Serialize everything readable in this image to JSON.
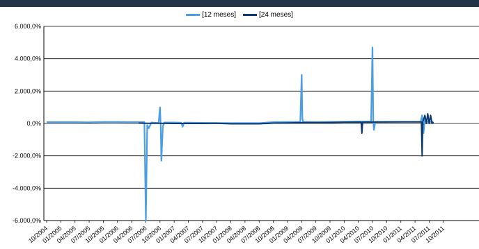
{
  "chart_data": {
    "type": "line",
    "title": "",
    "xlabel": "",
    "ylabel": "",
    "ylim": [
      -6000,
      6000
    ],
    "y_ticks": [
      6000,
      4000,
      2000,
      0,
      -2000,
      -4000,
      -6000
    ],
    "y_tick_labels": [
      "6.000,0%",
      "4.000,0%",
      "2.000,0%",
      "0,0%",
      "-2.000,0%",
      "-4.000,0%",
      "-6.000,0%"
    ],
    "x_ticks": [
      "10/2004",
      "01/2005",
      "04/2005",
      "07/2005",
      "10/2005",
      "01/2006",
      "04/2006",
      "07/2006",
      "10/2006",
      "01/2007",
      "04/2007",
      "07/2007",
      "10/2007",
      "01/2008",
      "04/2008",
      "07/2008",
      "10/2008",
      "01/2009",
      "04/2009",
      "07/2009",
      "10/2009",
      "01/2010",
      "04/2010",
      "07/2010",
      "10/2010",
      "01/2011",
      "04/2011",
      "07/2011",
      "10/2011"
    ],
    "grid": true,
    "legend": "top-center",
    "series": [
      {
        "name": "[12 meses]",
        "color": "#4a9ee8",
        "points": [
          [
            0,
            80
          ],
          [
            1,
            80
          ],
          [
            2,
            80
          ],
          [
            3,
            70
          ],
          [
            4,
            90
          ],
          [
            5,
            90
          ],
          [
            6,
            80
          ],
          [
            6.9,
            80
          ],
          [
            7.0,
            -6000
          ],
          [
            7.1,
            -100
          ],
          [
            7.2,
            -300
          ],
          [
            7.4,
            60
          ],
          [
            7.9,
            30
          ],
          [
            8.0,
            1000
          ],
          [
            8.05,
            -100
          ],
          [
            8.1,
            -2300
          ],
          [
            8.2,
            -200
          ],
          [
            8.3,
            60
          ],
          [
            9,
            60
          ],
          [
            9.5,
            50
          ],
          [
            9.6,
            -200
          ],
          [
            9.7,
            50
          ],
          [
            10,
            50
          ],
          [
            11,
            40
          ],
          [
            12,
            30
          ],
          [
            13,
            20
          ],
          [
            14,
            20
          ],
          [
            15,
            20
          ],
          [
            16,
            80
          ],
          [
            17,
            90
          ],
          [
            17.9,
            100
          ],
          [
            18.0,
            3000
          ],
          [
            18.05,
            300
          ],
          [
            18.1,
            100
          ],
          [
            19,
            80
          ],
          [
            20,
            90
          ],
          [
            21,
            100
          ],
          [
            22,
            120
          ],
          [
            22.9,
            120
          ],
          [
            23.0,
            4700
          ],
          [
            23.05,
            200
          ],
          [
            23.1,
            -400
          ],
          [
            23.2,
            100
          ],
          [
            24,
            100
          ],
          [
            25,
            100
          ],
          [
            26,
            100
          ],
          [
            26.4,
            100
          ],
          [
            26.5,
            500
          ],
          [
            26.6,
            -600
          ],
          [
            26.7,
            300
          ],
          [
            26.8,
            100
          ],
          [
            27,
            100
          ],
          [
            27.3,
            100
          ]
        ]
      },
      {
        "name": "[24 meses]",
        "color": "#0d3a6e",
        "points": [
          [
            6.5,
            20
          ],
          [
            7,
            10
          ],
          [
            8,
            10
          ],
          [
            9,
            0
          ],
          [
            10,
            0
          ],
          [
            11,
            0
          ],
          [
            12,
            10
          ],
          [
            13,
            -20
          ],
          [
            14,
            -20
          ],
          [
            15,
            -20
          ],
          [
            16,
            20
          ],
          [
            17,
            30
          ],
          [
            18,
            50
          ],
          [
            19,
            50
          ],
          [
            20,
            60
          ],
          [
            21,
            80
          ],
          [
            22,
            80
          ],
          [
            22.2,
            80
          ],
          [
            22.25,
            -600
          ],
          [
            22.3,
            80
          ],
          [
            24,
            90
          ],
          [
            25,
            100
          ],
          [
            26,
            100
          ],
          [
            26.45,
            100
          ],
          [
            26.5,
            -2000
          ],
          [
            26.55,
            100
          ],
          [
            26.7,
            500
          ],
          [
            26.8,
            0
          ],
          [
            26.9,
            600
          ],
          [
            27.0,
            0
          ],
          [
            27.1,
            500
          ],
          [
            27.2,
            0
          ],
          [
            27.3,
            80
          ]
        ]
      }
    ]
  }
}
